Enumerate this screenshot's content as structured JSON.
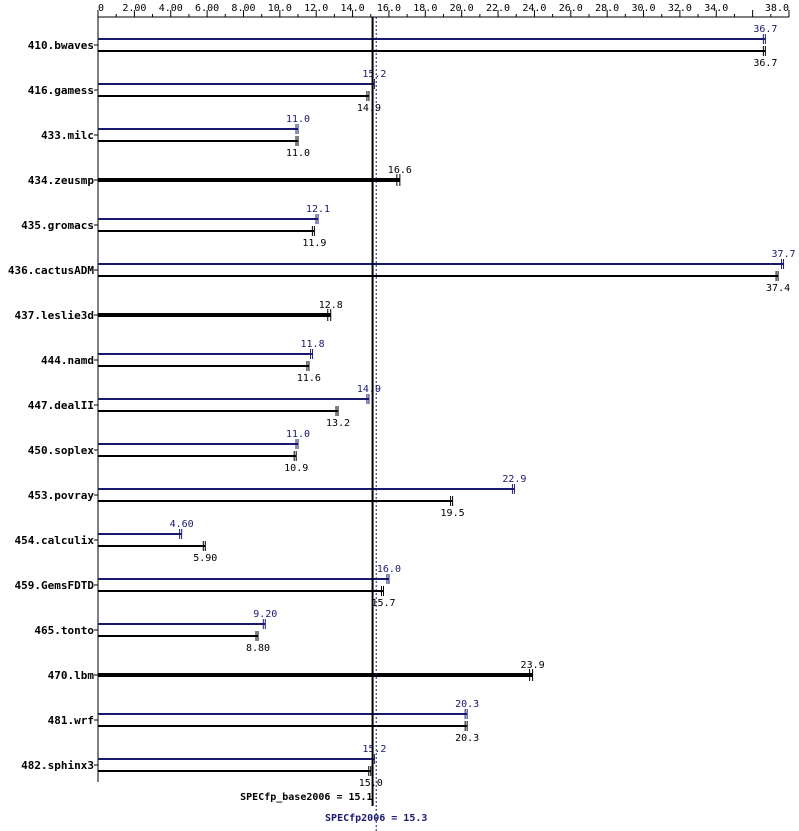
{
  "chart_data": {
    "type": "bar",
    "orientation": "horizontal",
    "xlim": [
      0,
      38
    ],
    "x_ticks": [
      "0",
      "2.00",
      "4.00",
      "6.00",
      "8.00",
      "10.0",
      "12.0",
      "14.0",
      "16.0",
      "18.0",
      "20.0",
      "22.0",
      "24.0",
      "26.0",
      "28.0",
      "30.0",
      "32.0",
      "34.0",
      "38.0"
    ],
    "x_tick_values": [
      0,
      2,
      4,
      6,
      8,
      10,
      12,
      14,
      16,
      18,
      20,
      22,
      24,
      26,
      28,
      30,
      32,
      34,
      38
    ],
    "categories": [
      "410.bwaves",
      "416.gamess",
      "433.milc",
      "434.zeusmp",
      "435.gromacs",
      "436.cactusADM",
      "437.leslie3d",
      "444.namd",
      "447.dealII",
      "450.soplex",
      "453.povray",
      "454.calculix",
      "459.GemsFDTD",
      "465.tonto",
      "470.lbm",
      "481.wrf",
      "482.sphinx3"
    ],
    "series": [
      {
        "name": "peak",
        "color": "#191970",
        "values": [
          36.7,
          15.2,
          11.0,
          null,
          12.1,
          37.7,
          null,
          11.8,
          14.9,
          11.0,
          22.9,
          4.6,
          16.0,
          9.2,
          null,
          20.3,
          15.2
        ],
        "labels": [
          "36.7",
          "15.2",
          "11.0",
          "",
          "12.1",
          "37.7",
          "",
          "11.8",
          "14.9",
          "11.0",
          "22.9",
          "4.60",
          "16.0",
          "9.20",
          "",
          "20.3",
          "15.2"
        ]
      },
      {
        "name": "base",
        "color": "#000000",
        "values": [
          36.7,
          14.9,
          11.0,
          16.6,
          11.9,
          37.4,
          12.8,
          11.6,
          13.2,
          10.9,
          19.5,
          5.9,
          15.7,
          8.8,
          23.9,
          20.3,
          15.0
        ],
        "labels": [
          "36.7",
          "14.9",
          "11.0",
          "16.6",
          "11.9",
          "37.4",
          "12.8",
          "11.6",
          "13.2",
          "10.9",
          "19.5",
          "5.90",
          "15.7",
          "8.80",
          "23.9",
          "20.3",
          "15.0"
        ]
      }
    ],
    "reference_lines": [
      {
        "label": "SPECfp_base2006 = 15.1",
        "value": 15.1,
        "color": "#000000"
      },
      {
        "label": "SPECfp2006 = 15.3",
        "value": 15.3,
        "color": "#191970"
      }
    ],
    "grid": false
  }
}
